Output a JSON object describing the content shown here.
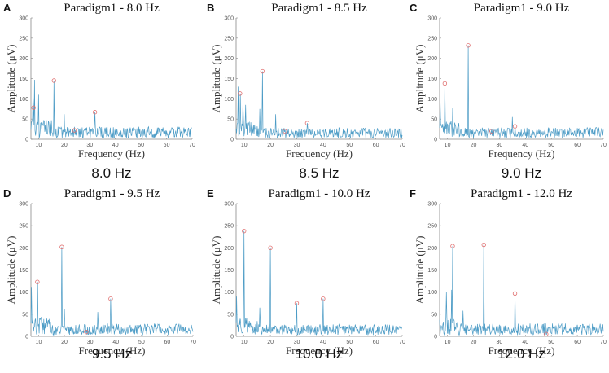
{
  "chart_data": [
    {
      "panel": "A",
      "type": "line",
      "title": "Paradigm1 - 8.0 Hz",
      "caption": "8.0 Hz",
      "xlabel": "Frequency (Hz)",
      "ylabel": "Amplitude (μV)",
      "xlim": [
        7,
        70
      ],
      "ylim": [
        0,
        300
      ],
      "xticks": [
        10,
        20,
        30,
        40,
        50,
        60,
        70
      ],
      "yticks": [
        0,
        50,
        100,
        150,
        200,
        250,
        300
      ],
      "markers": [
        [
          8,
          78
        ],
        [
          16,
          145
        ],
        [
          24,
          22
        ],
        [
          32,
          67
        ]
      ],
      "spikes": [
        [
          8.3,
          147
        ],
        [
          7.8,
          112
        ],
        [
          10,
          110
        ],
        [
          16,
          145
        ],
        [
          32,
          67
        ],
        [
          20,
          62
        ]
      ],
      "noise_level": 28,
      "seed": 1
    },
    {
      "panel": "B",
      "type": "line",
      "title": "Paradigm1 - 8.5 Hz",
      "caption": "8.5 Hz",
      "xlabel": "Frequency (Hz)",
      "ylabel": "Amplitude (μV)",
      "xlim": [
        7,
        70
      ],
      "ylim": [
        0,
        300
      ],
      "xticks": [
        10,
        20,
        30,
        40,
        50,
        60,
        70
      ],
      "yticks": [
        0,
        50,
        100,
        150,
        200,
        250,
        300
      ],
      "markers": [
        [
          8.5,
          113
        ],
        [
          17,
          168
        ],
        [
          25.5,
          20
        ],
        [
          34,
          40
        ]
      ],
      "spikes": [
        [
          7.8,
          130
        ],
        [
          8.5,
          113
        ],
        [
          9.5,
          90
        ],
        [
          10.5,
          85
        ],
        [
          17,
          168
        ],
        [
          16,
          75
        ],
        [
          22,
          62
        ]
      ],
      "noise_level": 26,
      "seed": 2
    },
    {
      "panel": "C",
      "type": "line",
      "title": "Paradigm1 - 9.0 Hz",
      "caption": "9.0 Hz",
      "xlabel": "Frequency (Hz)",
      "ylabel": "Amplitude (μV)",
      "xlim": [
        7,
        70
      ],
      "ylim": [
        0,
        300
      ],
      "xticks": [
        10,
        20,
        30,
        40,
        50,
        60,
        70
      ],
      "yticks": [
        0,
        50,
        100,
        150,
        200,
        250,
        300
      ],
      "markers": [
        [
          9,
          138
        ],
        [
          18,
          232
        ],
        [
          27,
          20
        ],
        [
          36,
          32
        ]
      ],
      "spikes": [
        [
          7.2,
          95
        ],
        [
          9,
          138
        ],
        [
          12,
          78
        ],
        [
          18,
          232
        ],
        [
          35,
          55
        ]
      ],
      "noise_level": 26,
      "seed": 3
    },
    {
      "panel": "D",
      "type": "line",
      "title": "Paradigm1 - 9.5 Hz",
      "caption": "9.5 Hz",
      "xlabel": "Frequency (Hz)",
      "ylabel": "Amplitude (μV)",
      "xlim": [
        7,
        70
      ],
      "ylim": [
        0,
        300
      ],
      "xticks": [
        10,
        20,
        30,
        40,
        50,
        60,
        70
      ],
      "yticks": [
        0,
        50,
        100,
        150,
        200,
        250,
        300
      ],
      "markers": [
        [
          9.5,
          123
        ],
        [
          19,
          202
        ],
        [
          28.5,
          10
        ],
        [
          38,
          85
        ]
      ],
      "spikes": [
        [
          7.2,
          110
        ],
        [
          9.5,
          123
        ],
        [
          19,
          202
        ],
        [
          38,
          85
        ],
        [
          20,
          62
        ],
        [
          33,
          55
        ]
      ],
      "noise_level": 26,
      "seed": 4
    },
    {
      "panel": "E",
      "type": "line",
      "title": "Paradigm1 - 10.0 Hz",
      "caption": "10.0 Hz",
      "xlabel": "Frequency (Hz)",
      "ylabel": "Amplitude (μV)",
      "xlim": [
        7,
        70
      ],
      "ylim": [
        0,
        300
      ],
      "xticks": [
        10,
        20,
        30,
        40,
        50,
        60,
        70
      ],
      "yticks": [
        0,
        50,
        100,
        150,
        200,
        250,
        300
      ],
      "markers": [
        [
          10,
          238
        ],
        [
          20,
          200
        ],
        [
          30,
          75
        ],
        [
          40,
          85
        ]
      ],
      "spikes": [
        [
          7.2,
          90
        ],
        [
          10,
          238
        ],
        [
          20,
          200
        ],
        [
          30,
          75
        ],
        [
          40,
          85
        ],
        [
          16,
          65
        ]
      ],
      "noise_level": 24,
      "seed": 5
    },
    {
      "panel": "F",
      "type": "line",
      "title": "Paradigm1 - 12.0 Hz",
      "caption": "12.0 Hz",
      "xlabel": "Frequency (Hz)",
      "ylabel": "Amplitude (μV)",
      "xlim": [
        7,
        70
      ],
      "ylim": [
        0,
        300
      ],
      "xticks": [
        10,
        20,
        30,
        40,
        50,
        60,
        70
      ],
      "yticks": [
        0,
        50,
        100,
        150,
        200,
        250,
        300
      ],
      "markers": [
        [
          12,
          204
        ],
        [
          24,
          207
        ],
        [
          36,
          97
        ],
        [
          48,
          5
        ]
      ],
      "spikes": [
        [
          9.5,
          100
        ],
        [
          11.5,
          105
        ],
        [
          12,
          204
        ],
        [
          24,
          207
        ],
        [
          36,
          97
        ],
        [
          16,
          58
        ]
      ],
      "noise_level": 26,
      "seed": 6
    }
  ],
  "colors": {
    "line": "#4d9cc6",
    "marker": "#e07070",
    "axis": "#888888"
  }
}
